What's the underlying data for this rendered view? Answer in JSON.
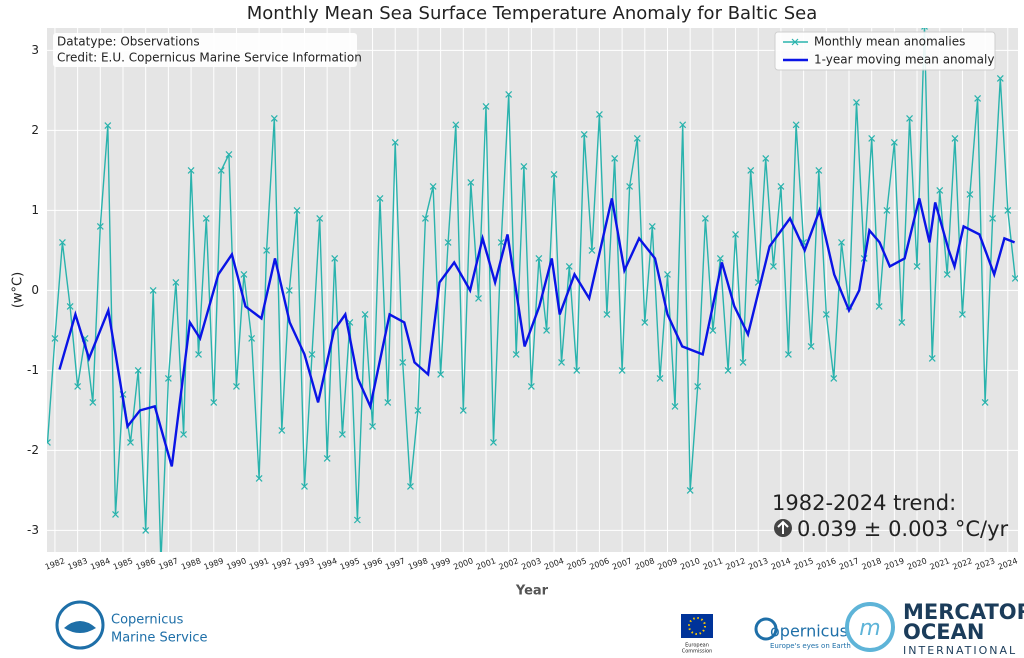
{
  "chart_data": {
    "type": "line",
    "title": "Monthly Mean Sea Surface Temperature Anomaly for Baltic Sea",
    "x_label": "Year",
    "y_label": "(w°C)",
    "annotations": [
      "Datatype: Observations",
      "Credit: E.U. Copernicus Marine Service Information"
    ],
    "trend_title": "1982-2024 trend:",
    "trend_value": "0.039 ± 0.003 °C/yr",
    "xlim": [
      1981.65,
      2024.45
    ],
    "ylim": [
      -3.27,
      3.28
    ],
    "xticks": [
      1982,
      1983,
      1984,
      1985,
      1986,
      1987,
      1988,
      1989,
      1990,
      1991,
      1992,
      1993,
      1994,
      1995,
      1996,
      1997,
      1998,
      1999,
      2000,
      2001,
      2002,
      2003,
      2004,
      2005,
      2006,
      2007,
      2008,
      2009,
      2010,
      2011,
      2012,
      2013,
      2014,
      2015,
      2016,
      2017,
      2018,
      2019,
      2020,
      2021,
      2022,
      2023,
      2024
    ],
    "yticks": [
      -3,
      -2,
      -1,
      0,
      1,
      2,
      3
    ],
    "grid": true,
    "legend": "upper right",
    "series": [
      {
        "name": "Monthly mean anomalies",
        "color": "#2ab3ad",
        "marker": "x",
        "x": [
          1981.67,
          1982,
          1982.33,
          1982.67,
          1983,
          1983.33,
          1983.67,
          1984,
          1984.33,
          1984.67,
          1985,
          1985.33,
          1985.67,
          1986,
          1986.33,
          1986.67,
          1987,
          1987.33,
          1987.67,
          1988,
          1988.33,
          1988.67,
          1989,
          1989.33,
          1989.67,
          1990,
          1990.33,
          1990.67,
          1991,
          1991.33,
          1991.67,
          1992,
          1992.33,
          1992.67,
          1993,
          1993.33,
          1993.67,
          1994,
          1994.33,
          1994.67,
          1995,
          1995.33,
          1995.67,
          1996,
          1996.33,
          1996.67,
          1997,
          1997.33,
          1997.67,
          1998,
          1998.33,
          1998.67,
          1999,
          1999.33,
          1999.67,
          2000,
          2000.33,
          2000.67,
          2001,
          2001.33,
          2001.67,
          2002,
          2002.33,
          2002.67,
          2003,
          2003.33,
          2003.67,
          2004,
          2004.33,
          2004.67,
          2005,
          2005.33,
          2005.67,
          2006,
          2006.33,
          2006.67,
          2007,
          2007.33,
          2007.67,
          2008,
          2008.33,
          2008.67,
          2009,
          2009.33,
          2009.67,
          2010,
          2010.33,
          2010.67,
          2011,
          2011.33,
          2011.67,
          2012,
          2012.33,
          2012.67,
          2013,
          2013.33,
          2013.67,
          2014,
          2014.33,
          2014.67,
          2015,
          2015.33,
          2015.67,
          2016,
          2016.33,
          2016.67,
          2017,
          2017.33,
          2017.67,
          2018,
          2018.33,
          2018.67,
          2019,
          2019.33,
          2019.67,
          2020,
          2020.33,
          2020.67,
          2021,
          2021.33,
          2021.67,
          2022,
          2022.33,
          2022.67,
          2023,
          2023.33,
          2023.67,
          2024,
          2024.33
        ],
        "values": [
          -1.9,
          -0.6,
          0.6,
          -0.2,
          -1.2,
          -0.6,
          -1.4,
          0.8,
          2.06,
          -2.8,
          -1.3,
          -1.9,
          -1.0,
          -3.0,
          0.0,
          -3.4,
          -1.1,
          0.1,
          -1.8,
          1.5,
          -0.8,
          0.9,
          -1.4,
          1.5,
          1.7,
          -1.2,
          0.2,
          -0.6,
          -2.35,
          0.5,
          2.15,
          -1.75,
          0.0,
          1.0,
          -2.45,
          -0.8,
          0.9,
          -2.1,
          0.4,
          -1.8,
          -0.4,
          -2.87,
          -0.3,
          -1.7,
          1.15,
          -1.4,
          1.85,
          -0.9,
          -2.45,
          -1.5,
          0.9,
          1.3,
          -1.05,
          0.6,
          2.07,
          -1.5,
          1.35,
          -0.1,
          2.3,
          -1.9,
          0.6,
          2.45,
          -0.8,
          1.55,
          -1.2,
          0.4,
          -0.5,
          1.45,
          -0.9,
          0.3,
          -1.0,
          1.95,
          0.5,
          2.2,
          -0.3,
          1.65,
          -1.0,
          1.3,
          1.9,
          -0.4,
          0.8,
          -1.1,
          0.2,
          -1.45,
          2.07,
          -2.5,
          -1.2,
          0.9,
          -0.5,
          0.4,
          -1.0,
          0.7,
          -0.9,
          1.5,
          0.1,
          1.65,
          0.3,
          1.3,
          -0.8,
          2.07,
          0.6,
          -0.7,
          1.5,
          -0.3,
          -1.1,
          0.6,
          -0.2,
          2.35,
          0.4,
          1.9,
          -0.2,
          1.0,
          1.85,
          -0.4,
          2.15,
          0.3,
          3.3,
          -0.85,
          1.25,
          0.2,
          1.9,
          -0.3,
          1.2,
          2.4,
          -1.4,
          0.9,
          2.65,
          1.0,
          0.15
        ]
      },
      {
        "name": "1-year moving mean anomaly",
        "color": "#0a14e6",
        "marker": "none",
        "x": [
          1982.2,
          1982.9,
          1983.5,
          1984.35,
          1985.2,
          1985.75,
          1986.4,
          1987.15,
          1987.95,
          1988.4,
          1989.2,
          1989.8,
          1990.4,
          1991.1,
          1991.7,
          1992.35,
          1993.0,
          1993.6,
          1994.3,
          1994.8,
          1995.35,
          1995.9,
          1996.75,
          1997.4,
          1997.85,
          1998.45,
          1998.95,
          1999.6,
          2000.3,
          2000.85,
          2001.4,
          2001.95,
          2002.7,
          2003.35,
          2003.9,
          2004.25,
          2004.9,
          2005.55,
          2006.55,
          2007.1,
          2007.75,
          2008.45,
          2009.0,
          2009.65,
          2010.55,
          2011.4,
          2011.95,
          2012.55,
          2013.5,
          2014.4,
          2015.05,
          2015.7,
          2016.35,
          2017.0,
          2017.45,
          2017.9,
          2018.35,
          2018.8,
          2019.45,
          2020.1,
          2020.55,
          2020.8,
          2021.4,
          2021.65,
          2022.05,
          2022.75,
          2023.4,
          2023.85,
          2024.3
        ],
        "values": [
          -0.99,
          -0.3,
          -0.85,
          -0.25,
          -1.7,
          -1.5,
          -1.45,
          -2.2,
          -0.4,
          -0.6,
          0.2,
          0.45,
          -0.2,
          -0.35,
          0.4,
          -0.4,
          -0.8,
          -1.4,
          -0.5,
          -0.3,
          -1.1,
          -1.45,
          -0.3,
          -0.4,
          -0.9,
          -1.05,
          0.1,
          0.35,
          0.0,
          0.65,
          0.1,
          0.7,
          -0.7,
          -0.2,
          0.4,
          -0.3,
          0.2,
          -0.1,
          1.15,
          0.25,
          0.65,
          0.4,
          -0.3,
          -0.7,
          -0.8,
          0.35,
          -0.2,
          -0.55,
          0.55,
          0.9,
          0.5,
          1.0,
          0.2,
          -0.25,
          0.0,
          0.75,
          0.6,
          0.3,
          0.4,
          1.15,
          0.6,
          1.1,
          0.5,
          0.3,
          0.8,
          0.7,
          0.2,
          0.65,
          0.6
        ]
      }
    ]
  },
  "logos": {
    "copernicus_marine": [
      "Copernicus",
      "Marine Service"
    ],
    "european_commission": [
      "European",
      "Commission"
    ],
    "copernicus": "opernicus",
    "copernicus_tagline": "Europe's eyes on Earth",
    "mercator": [
      "MERCATOR",
      "OCEAN",
      "INTERNATIONAL"
    ]
  }
}
